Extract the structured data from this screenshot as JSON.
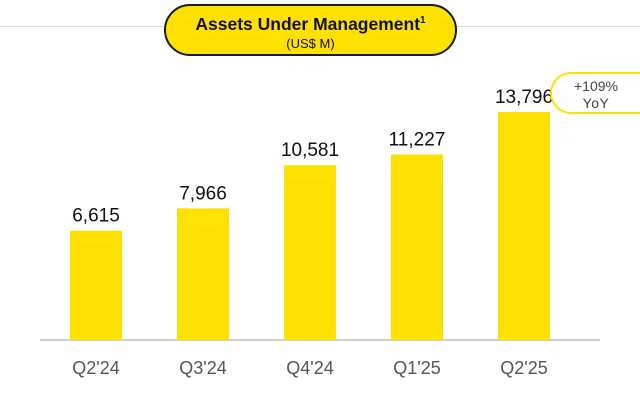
{
  "chart_data": {
    "type": "bar",
    "title": "Assets Under Management",
    "title_footnote": "1",
    "subtitle": "(US$ M)",
    "categories": [
      "Q2'24",
      "Q3'24",
      "Q4'24",
      "Q1'25",
      "Q2'25"
    ],
    "values": [
      6615,
      7966,
      10581,
      11227,
      13796
    ],
    "value_labels": [
      "6,615",
      "7,966",
      "10,581",
      "11,227",
      "13,796"
    ],
    "ylim": [
      0,
      14000
    ],
    "grid": false,
    "annotation": {
      "line1": "+109%",
      "line2": "YoY",
      "target": "Q2'25"
    },
    "colors": {
      "bar": "#ffe100",
      "title_bg": "#ffe100",
      "axis": "#bfbfbf",
      "text": "#111111",
      "tick": "#555555"
    }
  }
}
